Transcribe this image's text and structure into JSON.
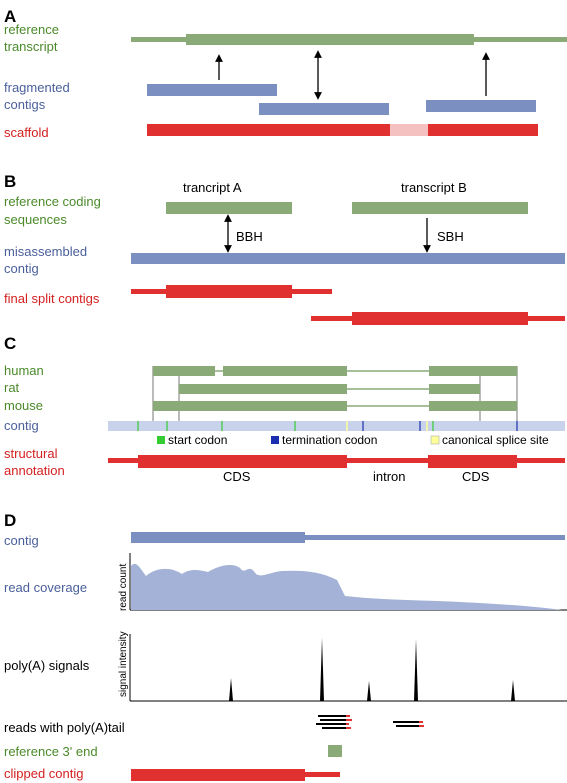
{
  "colors": {
    "green": "#8aab78",
    "green_text": "#4a8a2a",
    "blue": "#7b8fc0",
    "blue_text": "#4a5f9c",
    "red": "#e03030",
    "red_text": "#d42020",
    "pink": "#f5c0c0",
    "contig_light": "#c8d2ea",
    "coverage_fill": "#a3b2d6",
    "start_codon": "#33cc33",
    "termination_codon": "#1a2fb0",
    "splice_site": "#ffff99"
  },
  "panel_a": {
    "letter": "A",
    "reference_transcript": [
      "reference",
      "transcript"
    ],
    "fragmented_contigs": [
      "fragmented",
      "contigs"
    ],
    "scaffold": "scaffold"
  },
  "panel_b": {
    "letter": "B",
    "reference_coding_sequences": [
      "reference coding",
      "sequences"
    ],
    "transcript_a": "trancript A",
    "transcript_b": "transcript B",
    "bbh": "BBH",
    "sbh": "SBH",
    "misassembled_contig": [
      "misassembled",
      "contig"
    ],
    "final_split_contigs": "final split contigs"
  },
  "panel_c": {
    "letter": "C",
    "species": [
      "human",
      "rat",
      "mouse"
    ],
    "contig": "contig",
    "legend": {
      "start_codon": "start codon",
      "termination_codon": "termination codon",
      "canonical_splice_site": "canonical splice site"
    },
    "structural_annotation": [
      "structural",
      "annotation"
    ],
    "cds_left": "CDS",
    "intron": "intron",
    "cds_right": "CDS"
  },
  "panel_d": {
    "letter": "D",
    "contig": "contig",
    "read_coverage": "read coverage",
    "read_count_axis": "read count",
    "polya_signals": "poly(A) signals",
    "signal_intensity_axis": "signal intensity",
    "reads_with_polya_tail": "reads with poly(A)tail",
    "reference_3prime_end": "reference 3' end",
    "clipped_contig": "clipped contig"
  }
}
